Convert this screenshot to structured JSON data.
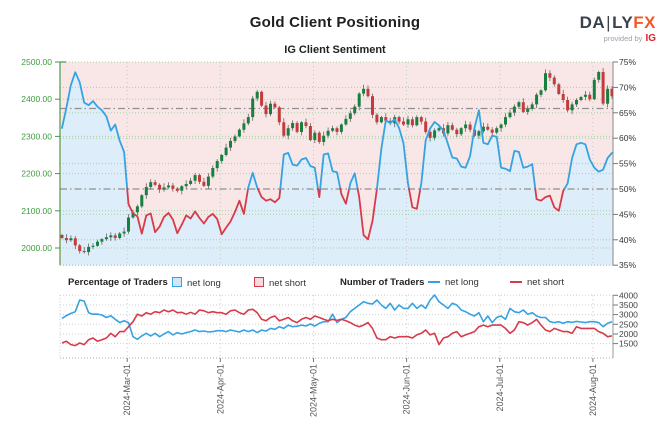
{
  "header": {
    "title": "Gold Client Positioning",
    "subtitle": "IG Client Sentiment",
    "logo": {
      "brand_main": "DA",
      "brand_divider": "|",
      "brand_mid": "LY",
      "brand_accent": "FX",
      "tagline": "provided by",
      "tagline_brand": "IG"
    }
  },
  "legend": {
    "pct_header": "Percentage of Traders",
    "count_header": "Number of Traders",
    "net_long_label": "net long",
    "net_short_label": "net short"
  },
  "colors": {
    "net_long_line": "#36a2e2",
    "net_short_line": "#d63b4b",
    "fill_below_line": "#ddedf9",
    "fill_above_line": "#f9e7e7",
    "candle_up": "#178040",
    "candle_down": "#c43b3b",
    "wick": "#666666",
    "price_axis_text": "#3f9b3f",
    "grid_green": "#a6d3a6",
    "grid_gray": "#c6c6c6",
    "ref_line": "#8f8f8f",
    "pct_axis_text": "#333333",
    "count_axis_text": "#444444",
    "date_text": "#555555"
  },
  "chart_data": [
    {
      "type": "candlestick+line",
      "title": "IG Client Sentiment",
      "x_ticks": [
        {
          "label": "2024-Mar-01",
          "day": 14.7
        },
        {
          "label": "2024-Apr-01",
          "day": 35.7
        },
        {
          "label": "2024-May-01",
          "day": 56.7
        },
        {
          "label": "2024-Jun-01",
          "day": 77.7
        },
        {
          "label": "2024-Jul-01",
          "day": 98.7
        },
        {
          "label": "2024-Aug-01",
          "day": 119.7
        }
      ],
      "price_axis": {
        "side": "left",
        "ticks": [
          {
            "label": "2500.00",
            "value": 2500
          },
          {
            "label": "2400.00",
            "value": 2400
          },
          {
            "label": "2300.00",
            "value": 2300
          },
          {
            "label": "2200.00",
            "value": 2200
          },
          {
            "label": "2100.00",
            "value": 2100
          },
          {
            "label": "2000.00",
            "value": 2000
          }
        ]
      },
      "pct_axis": {
        "side": "right",
        "range": [
          35,
          75
        ],
        "ticks": [
          {
            "label": "75%",
            "value": 75
          },
          {
            "label": "70%",
            "value": 70
          },
          {
            "label": "65%",
            "value": 65
          },
          {
            "label": "60%",
            "value": 60
          },
          {
            "label": "55%",
            "value": 55
          },
          {
            "label": "50%",
            "value": 50
          },
          {
            "label": "45%",
            "value": 45
          },
          {
            "label": "40%",
            "value": 40
          },
          {
            "label": "35%",
            "value": 35
          }
        ]
      },
      "reference_lines": [
        {
          "axis": "pct",
          "value": 50,
          "style": "dash-dot"
        },
        {
          "axis": "price",
          "value": 2375,
          "style": "dash-dot"
        }
      ],
      "series": [
        {
          "name": "gold price candles",
          "first_open": 2035,
          "closes": [
            2027,
            2021,
            2026,
            2007,
            1992,
            1989,
            2003,
            2006,
            2017,
            2024,
            2029,
            2034,
            2027,
            2039,
            2044,
            2082,
            2096,
            2112,
            2142,
            2164,
            2177,
            2170,
            2157,
            2163,
            2168,
            2159,
            2154,
            2166,
            2172,
            2181,
            2196,
            2178,
            2167,
            2192,
            2215,
            2234,
            2250,
            2270,
            2288,
            2300,
            2318,
            2335,
            2352,
            2402,
            2420,
            2383,
            2360,
            2388,
            2378,
            2338,
            2302,
            2322,
            2336,
            2312,
            2338,
            2328,
            2290,
            2310,
            2285,
            2302,
            2315,
            2322,
            2312,
            2332,
            2347,
            2362,
            2380,
            2415,
            2428,
            2408,
            2358,
            2338,
            2352,
            2342,
            2335,
            2352,
            2340,
            2332,
            2346,
            2330,
            2352,
            2340,
            2312,
            2296,
            2316,
            2322,
            2308,
            2330,
            2318,
            2306,
            2322,
            2332,
            2318,
            2302,
            2314,
            2326,
            2318,
            2310,
            2322,
            2332,
            2352,
            2364,
            2380,
            2392,
            2366,
            2374,
            2386,
            2412,
            2424,
            2470,
            2458,
            2440,
            2414,
            2398,
            2370,
            2386,
            2398,
            2406,
            2412,
            2400,
            2452,
            2473,
            2388,
            2428,
            2408
          ]
        },
        {
          "name": "net long %",
          "values": [
            62.0,
            66.0,
            70.5,
            73.0,
            71.0,
            67.0,
            66.5,
            67.3,
            66.2,
            65.5,
            64.3,
            61.5,
            62.7,
            59.5,
            57.3,
            47.0,
            45.2,
            44.6,
            41.2,
            44.8,
            45.2,
            41.5,
            42.6,
            44.5,
            45.3,
            44.0,
            41.3,
            43.0,
            44.8,
            44.2,
            45.6,
            44.3,
            43.2,
            44.5,
            45.1,
            44.1,
            41.1,
            42.4,
            43.6,
            45.5,
            47.7,
            45.1,
            50.3,
            53.2,
            50.3,
            48.4,
            47.7,
            48.0,
            47.4,
            48.2,
            56.8,
            57.1,
            54.8,
            54.6,
            55.8,
            56.1,
            54.5,
            54.2,
            48.4,
            56.8,
            57.0,
            53.5,
            53.3,
            49.0,
            47.1,
            51.1,
            53.1,
            48.4,
            40.9,
            40.1,
            43.7,
            50.0,
            58.0,
            63.5,
            63.0,
            63.7,
            62.0,
            59.0,
            51.1,
            46.4,
            46.1,
            51.1,
            59.6,
            61.9,
            63.2,
            62.5,
            61.5,
            58.9,
            56.2,
            56.0,
            54.4,
            54.2,
            56.5,
            62.0,
            65.5,
            59.1,
            58.8,
            60.5,
            60.3,
            54.2,
            54.0,
            53.5,
            57.5,
            57.3,
            54.2,
            54.4,
            54.9,
            48.0,
            47.7,
            48.4,
            48.7,
            46.4,
            45.7,
            49.6,
            51.1,
            56.1,
            58.8,
            59.1,
            58.8,
            55.8,
            54.2,
            53.4,
            53.8,
            56.1,
            57.1
          ]
        }
      ]
    },
    {
      "type": "line",
      "count_axis": {
        "side": "right",
        "range": [
          1300,
          4100
        ],
        "ticks": [
          {
            "label": "4000",
            "value": 4000
          },
          {
            "label": "3500",
            "value": 3500
          },
          {
            "label": "3000",
            "value": 3000
          },
          {
            "label": "2500",
            "value": 2500
          },
          {
            "label": "2000",
            "value": 2000
          },
          {
            "label": "1500",
            "value": 1500
          }
        ]
      },
      "series": [
        {
          "name": "net long",
          "values": [
            2800,
            2950,
            3065,
            3150,
            3755,
            3700,
            3100,
            3020,
            3030,
            2980,
            2850,
            2940,
            2760,
            2590,
            2680,
            2590,
            1860,
            1725,
            1900,
            2035,
            1895,
            2035,
            1860,
            2000,
            2120,
            1950,
            2070,
            2000,
            2070,
            2120,
            2205,
            2120,
            2155,
            2100,
            2120,
            2170,
            2170,
            2120,
            2205,
            2155,
            2100,
            2205,
            2120,
            2205,
            2070,
            2205,
            2150,
            2290,
            2240,
            2375,
            2290,
            2460,
            2375,
            2400,
            2460,
            2410,
            2515,
            2410,
            2550,
            2635,
            2635,
            3020,
            2590,
            2760,
            2850,
            3150,
            3325,
            3500,
            3670,
            3585,
            3550,
            3755,
            3500,
            3325,
            3585,
            3240,
            3500,
            3325,
            3325,
            3585,
            3325,
            3500,
            3325,
            3755,
            4015,
            3670,
            3500,
            3325,
            3585,
            3500,
            3240,
            3150,
            3020,
            2930,
            3100,
            2635,
            2930,
            2590,
            2850,
            2930,
            2760,
            3325,
            3150,
            3100,
            3240,
            3020,
            3100,
            2930,
            2850,
            2850,
            2635,
            2590,
            2635,
            2550,
            2635,
            2600,
            2650,
            2620,
            2590,
            2635,
            2635,
            2590,
            2375,
            2550,
            2635
          ]
        },
        {
          "name": "net short",
          "values": [
            1535,
            1620,
            1450,
            1400,
            1535,
            1450,
            1705,
            1790,
            1620,
            1705,
            1790,
            2035,
            1860,
            2120,
            2120,
            2375,
            2635,
            3020,
            2930,
            3100,
            3020,
            3150,
            3100,
            3240,
            3150,
            3240,
            3100,
            3120,
            3020,
            3120,
            3020,
            3240,
            3200,
            3100,
            3150,
            3100,
            3100,
            3020,
            3200,
            3240,
            3100,
            3020,
            3240,
            3275,
            3100,
            2760,
            2680,
            2850,
            2930,
            2680,
            2760,
            2850,
            2680,
            2590,
            2760,
            2850,
            2760,
            2930,
            2850,
            2760,
            2680,
            2760,
            2700,
            2760,
            2680,
            2590,
            2460,
            2375,
            2460,
            2590,
            2290,
            1790,
            1705,
            1705,
            1860,
            1790,
            1860,
            1860,
            1860,
            1790,
            1950,
            2035,
            2205,
            1950,
            2035,
            1450,
            1790,
            1860,
            2035,
            2120,
            1860,
            1950,
            2035,
            2120,
            2375,
            2460,
            2375,
            2460,
            2460,
            2460,
            2290,
            2035,
            2205,
            2635,
            2590,
            2460,
            2590,
            2760,
            2460,
            2205,
            2120,
            2290,
            2205,
            2120,
            2120,
            2035,
            2375,
            2290,
            2290,
            2290,
            2290,
            2120,
            2035,
            1860,
            1900
          ]
        }
      ]
    }
  ]
}
